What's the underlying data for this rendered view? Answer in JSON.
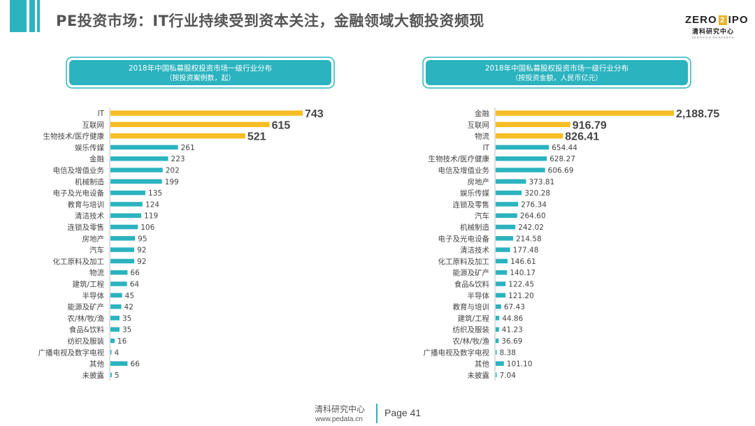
{
  "header": {
    "title": "PE投资市场：IT行业持续受到资本关注，金融领域大额投资频现",
    "logo_main_left": "ZERO",
    "logo_main_mark": "2",
    "logo_main_right": "IPO",
    "logo_sub": "清科研究中心",
    "logo_sub2": "ZERO2IPO RESEARCH"
  },
  "footer": {
    "org": "清科研究中心",
    "url": "www.pedata.cn",
    "page": "Page 41"
  },
  "colors": {
    "accent": "#2bb3bf",
    "highlight": "#f7bd25",
    "bar": "#2bb3bf"
  },
  "chart_data": [
    {
      "type": "bar",
      "orientation": "horizontal",
      "title": "2018年中国私募股权投资市场一级行业分布",
      "subtitle": "（按投资案例数，起）",
      "categories": [
        "IT",
        "互联网",
        "生物技术/医疗健康",
        "娱乐传媒",
        "金融",
        "电信及增值业务",
        "机械制造",
        "电子及光电设备",
        "教育与培训",
        "清洁技术",
        "连锁及零售",
        "房地产",
        "汽车",
        "化工原料及加工",
        "物流",
        "建筑/工程",
        "半导体",
        "能源及矿产",
        "农/林/牧/渔",
        "食品&饮料",
        "纺织及服装",
        "广播电视及数字电视",
        "其他",
        "未披露"
      ],
      "values": [
        743,
        615,
        521,
        261,
        223,
        202,
        199,
        135,
        124,
        119,
        106,
        95,
        92,
        92,
        66,
        64,
        45,
        42,
        35,
        35,
        16,
        4,
        66,
        5
      ],
      "labels": [
        "743",
        "615",
        "521",
        "261",
        "223",
        "202",
        "199",
        "135",
        "124",
        "119",
        "106",
        "95",
        "92",
        "92",
        "66",
        "64",
        "45",
        "42",
        "35",
        "35",
        "16",
        "4",
        "66",
        "5"
      ],
      "highlight_count": 3
    },
    {
      "type": "bar",
      "orientation": "horizontal",
      "title": "2018年中国私募股权投资市场一级行业分布",
      "subtitle": "（按投资金额，人民币亿元）",
      "categories": [
        "金融",
        "互联网",
        "物流",
        "IT",
        "生物技术/医疗健康",
        "电信及增值业务",
        "房地产",
        "娱乐传媒",
        "连锁及零售",
        "汽车",
        "机械制造",
        "电子及光电设备",
        "清洁技术",
        "化工原料及加工",
        "能源及矿产",
        "食品&饮料",
        "半导体",
        "教育与培训",
        "建筑/工程",
        "纺织及服装",
        "农/林/牧/渔",
        "广播电视及数字电视",
        "其他",
        "未披露"
      ],
      "values": [
        2188.75,
        916.79,
        826.41,
        654.44,
        628.27,
        606.69,
        373.81,
        320.28,
        276.34,
        264.6,
        242.02,
        214.58,
        177.48,
        146.61,
        140.17,
        122.45,
        121.2,
        67.43,
        44.86,
        41.23,
        36.69,
        8.38,
        101.1,
        7.04
      ],
      "labels": [
        "2,188.75",
        "916.79",
        "826.41",
        "654.44",
        "628.27",
        "606.69",
        "373.81",
        "320.28",
        "276.34",
        "264.60",
        "242.02",
        "214.58",
        "177.48",
        "146.61",
        "140.17",
        "122.45",
        "121.20",
        "67.43",
        "44.86",
        "41.23",
        "36.69",
        "8.38",
        "101.10",
        "7.04"
      ],
      "highlight_count": 3
    }
  ]
}
